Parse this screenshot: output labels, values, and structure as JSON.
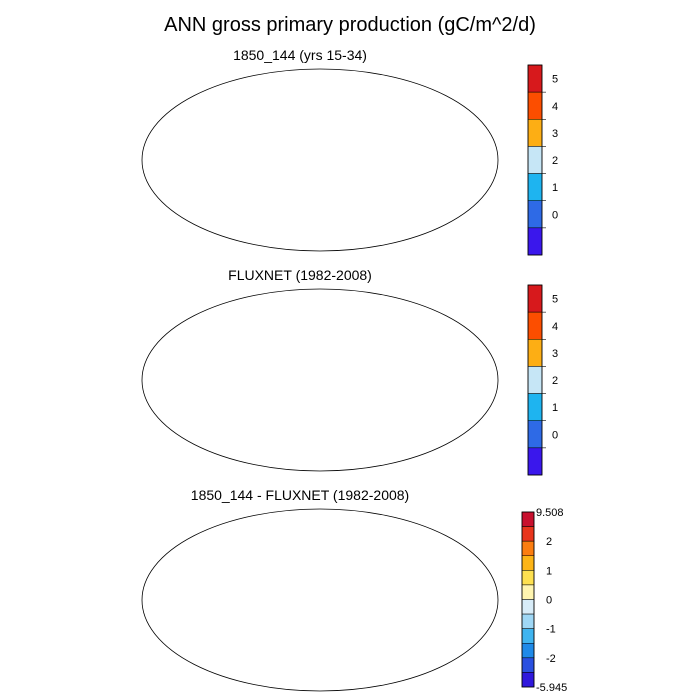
{
  "title": "ANN gross primary production (gC/m^2/d)",
  "panels": [
    {
      "id": "model",
      "title": "1850_144 (yrs 15-34)",
      "colorbar": {
        "labels": [
          "5",
          "4",
          "3",
          "2",
          "1",
          "0"
        ],
        "colors": [
          "#d7191c",
          "#fc4e00",
          "#fdae14",
          "#c6e6f6",
          "#1eb4f0",
          "#2e6ae6",
          "#3a17ec"
        ]
      }
    },
    {
      "id": "obs",
      "title": "FLUXNET (1982-2008)",
      "colorbar": {
        "labels": [
          "5",
          "4",
          "3",
          "2",
          "1",
          "0"
        ],
        "colors": [
          "#d7191c",
          "#fc4e00",
          "#fdae14",
          "#c6e6f6",
          "#1eb4f0",
          "#2e6ae6",
          "#3a17ec"
        ]
      }
    },
    {
      "id": "diff",
      "title": "1850_144 - FLUXNET (1982-2008)",
      "colorbar": {
        "max_label": "9.508",
        "min_label": "-5.945",
        "labels": [
          "2",
          "1",
          "0",
          "-1",
          "-2"
        ],
        "colors": [
          "#c8102e",
          "#e8351c",
          "#fb7d10",
          "#fcb416",
          "#fde050",
          "#fff5b0",
          "#d8ecf8",
          "#9fd7f5",
          "#3fb4ef",
          "#1f8ae8",
          "#2a50e0",
          "#3018dc"
        ]
      }
    }
  ]
}
